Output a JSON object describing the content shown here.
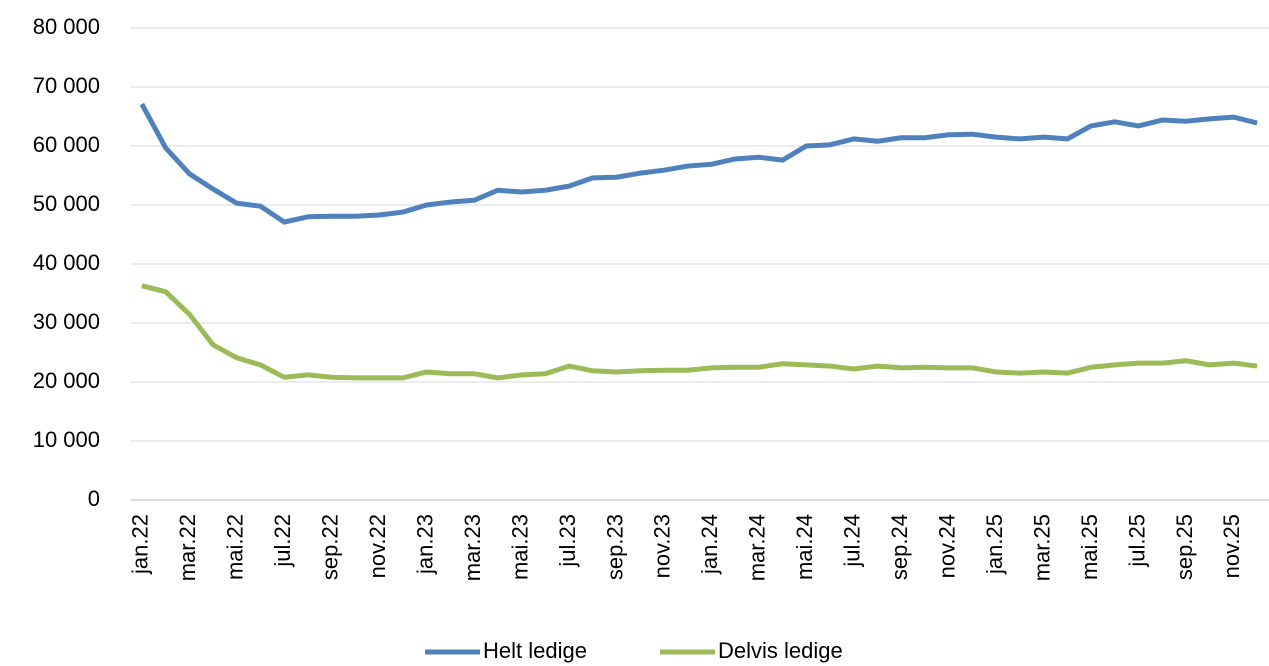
{
  "chart_data": {
    "type": "line",
    "categories": [
      "jan.22",
      null,
      "mar.22",
      null,
      "mai.22",
      null,
      "jul.22",
      null,
      "sep.22",
      null,
      "nov.22",
      null,
      "jan.23",
      null,
      "mar.23",
      null,
      "mai.23",
      null,
      "jul.23",
      null,
      "sep.23",
      null,
      "nov.23",
      null,
      "jan.24",
      null,
      "mar.24",
      null,
      "mai.24",
      null,
      "jul.24",
      null,
      "sep.24",
      null,
      "nov.24",
      null,
      "jan.25",
      null,
      "mar.25",
      null,
      "mai.25",
      null,
      "jul.25",
      null,
      "sep.25",
      null,
      "nov.25",
      null
    ],
    "series": [
      {
        "name": "Helt ledige",
        "color": "#4f81bd",
        "values": [
          67100,
          59700,
          55300,
          52700,
          50300,
          49800,
          47100,
          48000,
          48100,
          48100,
          48300,
          48800,
          50000,
          50500,
          50800,
          52500,
          52200,
          52500,
          53200,
          54600,
          54700,
          55400,
          55900,
          56600,
          56900,
          57800,
          58100,
          57600,
          60000,
          60200,
          61200,
          60800,
          61400,
          61400,
          61900,
          62000,
          61500,
          61200,
          61500,
          61200,
          63400,
          64100,
          63400,
          64400,
          64200,
          64600,
          64900,
          63900
        ]
      },
      {
        "name": "Delvis ledige",
        "color": "#9bbb59",
        "values": [
          36300,
          35300,
          31500,
          26300,
          24100,
          22900,
          20800,
          21200,
          20800,
          20700,
          20700,
          20700,
          21700,
          21400,
          21400,
          20700,
          21200,
          21400,
          22700,
          21900,
          21700,
          21900,
          22000,
          22000,
          22400,
          22500,
          22500,
          23100,
          22900,
          22700,
          22200,
          22700,
          22400,
          22500,
          22400,
          22400,
          21700,
          21500,
          21700,
          21500,
          22500,
          22900,
          23200,
          23200,
          23600,
          22900,
          23200,
          22700
        ]
      }
    ],
    "ylim": [
      0,
      80000
    ],
    "yticks": [
      0,
      {
        "value": 10000,
        "label": "10 000"
      },
      {
        "value": 20000,
        "label": "20 000"
      },
      {
        "value": 30000,
        "label": "30 000"
      },
      {
        "value": 40000,
        "label": "40 000"
      },
      {
        "value": 50000,
        "label": "50 000"
      },
      {
        "value": 60000,
        "label": "60 000"
      },
      {
        "value": 70000,
        "label": "70 000"
      },
      {
        "value": 80000,
        "label": "80 000"
      }
    ],
    "grid": true,
    "legend": "bottom"
  }
}
